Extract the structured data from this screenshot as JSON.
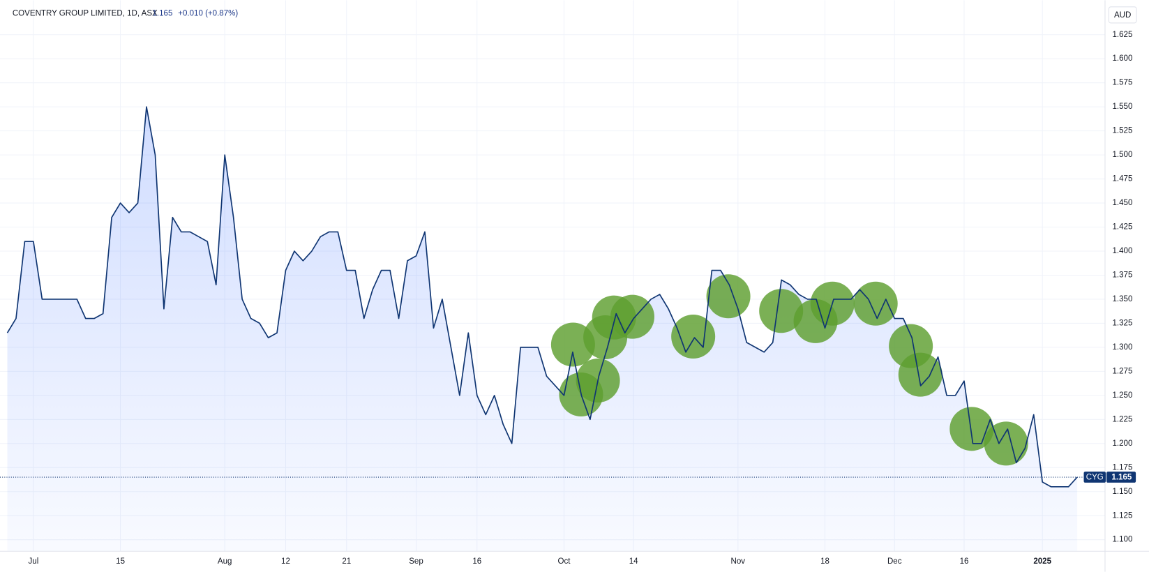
{
  "chart_data": {
    "type": "line",
    "title": "COVENTRY GROUP LIMITED, 1D, ASX",
    "last_price": 1.165,
    "change_label": "+0.010 (+0.87%)",
    "symbol": "CYG",
    "currency": "AUD",
    "color": "#0f3572",
    "grid": true,
    "categories": [
      null,
      null,
      null,
      "Jul",
      null,
      null,
      null,
      null,
      null,
      null,
      null,
      null,
      null,
      "15",
      null,
      null,
      null,
      null,
      null,
      null,
      null,
      null,
      null,
      null,
      null,
      "Aug",
      null,
      null,
      null,
      null,
      null,
      null,
      "12",
      null,
      null,
      null,
      null,
      null,
      null,
      "21",
      null,
      null,
      null,
      null,
      null,
      null,
      null,
      "Sep",
      null,
      null,
      null,
      null,
      null,
      null,
      "16",
      null,
      null,
      null,
      null,
      null,
      null,
      null,
      null,
      null,
      "Oct",
      null,
      null,
      null,
      null,
      null,
      null,
      null,
      "14",
      null,
      null,
      null,
      null,
      null,
      null,
      null,
      null,
      null,
      null,
      null,
      "Nov",
      null,
      null,
      null,
      null,
      null,
      null,
      null,
      null,
      null,
      "18",
      null,
      null,
      null,
      null,
      null,
      null,
      null,
      "Dec",
      null,
      null,
      null,
      null,
      null,
      null,
      null,
      "16",
      null,
      null,
      null,
      null,
      null,
      null,
      null,
      null,
      "2025",
      null,
      null,
      null,
      null
    ],
    "values": [
      1.315,
      1.33,
      1.41,
      1.41,
      1.35,
      1.35,
      1.35,
      1.35,
      1.35,
      1.33,
      1.33,
      1.335,
      1.435,
      1.45,
      1.44,
      1.45,
      1.55,
      1.5,
      1.34,
      1.435,
      1.42,
      1.42,
      1.415,
      1.41,
      1.365,
      1.5,
      1.435,
      1.35,
      1.33,
      1.325,
      1.31,
      1.315,
      1.38,
      1.4,
      1.39,
      1.4,
      1.415,
      1.42,
      1.42,
      1.38,
      1.38,
      1.33,
      1.36,
      1.38,
      1.38,
      1.33,
      1.39,
      1.395,
      1.42,
      1.32,
      1.35,
      1.3,
      1.25,
      1.315,
      1.25,
      1.23,
      1.25,
      1.22,
      1.2,
      1.3,
      1.3,
      1.3,
      1.27,
      1.26,
      1.25,
      1.295,
      1.25,
      1.225,
      1.27,
      1.3,
      1.335,
      1.315,
      1.33,
      1.34,
      1.35,
      1.355,
      1.34,
      1.32,
      1.295,
      1.31,
      1.3,
      1.38,
      1.38,
      1.365,
      1.34,
      1.305,
      1.3,
      1.295,
      1.305,
      1.37,
      1.365,
      1.355,
      1.35,
      1.35,
      1.32,
      1.35,
      1.35,
      1.35,
      1.36,
      1.35,
      1.33,
      1.35,
      1.33,
      1.33,
      1.31,
      1.26,
      1.27,
      1.29,
      1.25,
      1.25,
      1.265,
      1.2,
      1.2,
      1.225,
      1.2,
      1.215,
      1.18,
      1.195,
      1.23,
      1.16,
      1.155,
      1.155,
      1.155,
      1.165
    ],
    "ylim": [
      1.088,
      1.657
    ],
    "yticks": [
      {
        "value": 1.1,
        "label": "1.100"
      },
      {
        "value": 1.125,
        "label": "1.125"
      },
      {
        "value": 1.15,
        "label": "1.150"
      },
      {
        "value": 1.175,
        "label": "1.175"
      },
      {
        "value": 1.2,
        "label": "1.200"
      },
      {
        "value": 1.225,
        "label": "1.225"
      },
      {
        "value": 1.25,
        "label": "1.250"
      },
      {
        "value": 1.275,
        "label": "1.275"
      },
      {
        "value": 1.3,
        "label": "1.300"
      },
      {
        "value": 1.325,
        "label": "1.325"
      },
      {
        "value": 1.35,
        "label": "1.350"
      },
      {
        "value": 1.375,
        "label": "1.375"
      },
      {
        "value": 1.4,
        "label": "1.400"
      },
      {
        "value": 1.425,
        "label": "1.425"
      },
      {
        "value": 1.45,
        "label": "1.450"
      },
      {
        "value": 1.475,
        "label": "1.475"
      },
      {
        "value": 1.5,
        "label": "1.500"
      },
      {
        "value": 1.525,
        "label": "1.525"
      },
      {
        "value": 1.55,
        "label": "1.550"
      },
      {
        "value": 1.575,
        "label": "1.575"
      },
      {
        "value": 1.6,
        "label": "1.600"
      },
      {
        "value": 1.625,
        "label": "1.625"
      }
    ]
  }
}
